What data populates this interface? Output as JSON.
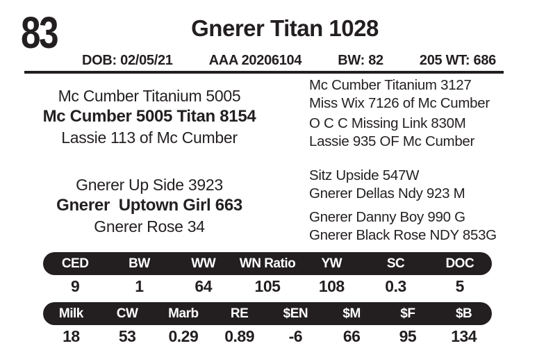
{
  "lot_number": "83",
  "header": {
    "title": "Gnerer Titan 1028",
    "dob": "DOB: 02/05/21",
    "registration": "AAA 20206104",
    "birth_weight": "BW: 82",
    "weaning_weight": "205 WT: 686"
  },
  "pedigree": {
    "sire": {
      "sire_of_sire": "Mc Cumber Titanium 5005",
      "name": "Mc Cumber 5005 Titan 8154",
      "dam_of_sire": "Lassie 113 of Mc Cumber",
      "grandparents": [
        {
          "sire": "Mc Cumber Titanium 3127",
          "dam": "Miss Wix 7126 of Mc Cumber"
        },
        {
          "sire": "O C C Missing Link 830M",
          "dam": "Lassie 935 OF Mc Cumber"
        }
      ]
    },
    "dam": {
      "sire_of_dam": "Gnerer Up Side 3923",
      "name": "Gnerer  Uptown Girl 663",
      "dam_of_dam": "Gnerer Rose 34",
      "grandparents": [
        {
          "sire": "Sitz Upside 547W",
          "dam": "Gnerer Dellas Ndy 923 M"
        },
        {
          "sire": "Gnerer Danny Boy 990 G",
          "dam": "Gnerer Black Rose NDY 853G"
        }
      ]
    }
  },
  "epd_table": {
    "row1": {
      "headers": [
        "CED",
        "BW",
        "WW",
        "WN Ratio",
        "YW",
        "SC",
        "DOC"
      ],
      "values": [
        "9",
        "1",
        "64",
        "105",
        "108",
        "0.3",
        "5"
      ]
    },
    "row2": {
      "headers": [
        "Milk",
        "CW",
        "Marb",
        "RE",
        "$EN",
        "$M",
        "$F",
        "$B"
      ],
      "values": [
        "18",
        "53",
        "0.29",
        "0.89",
        "-6",
        "66",
        "95",
        "134"
      ]
    }
  },
  "colors": {
    "text": "#231f20",
    "bar_background": "#231f20",
    "bar_text": "#ffffff",
    "page_background": "#ffffff"
  }
}
